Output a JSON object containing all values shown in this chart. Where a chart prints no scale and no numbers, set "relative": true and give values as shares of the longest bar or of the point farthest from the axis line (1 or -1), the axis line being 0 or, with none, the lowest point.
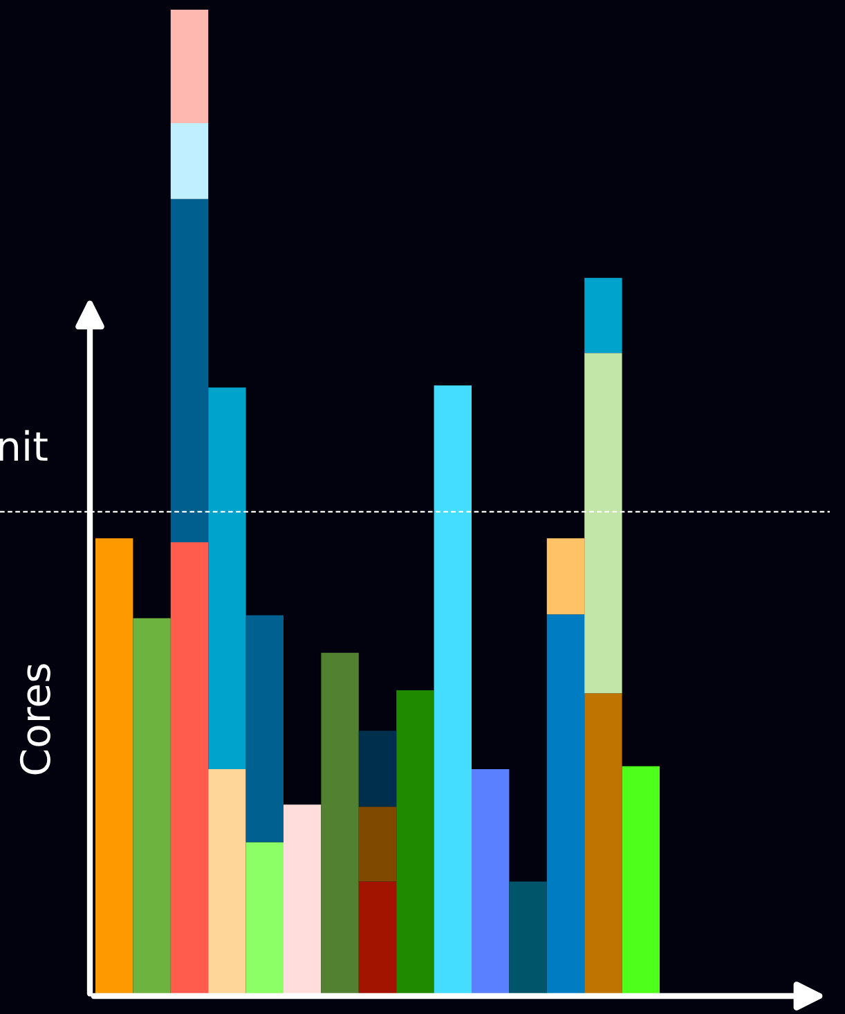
{
  "chart_data": {
    "type": "bar",
    "relative": true,
    "stacked": true,
    "ylabel": "Cores",
    "categories": [
      null,
      null,
      null,
      null,
      null,
      null,
      null,
      null,
      null,
      null,
      null,
      null,
      null,
      null,
      null
    ],
    "series": [
      {
        "colors": [
          "#ff9900",
          "#6db33f",
          "#ff5c4d",
          "#ffd699",
          "#8cff66",
          "#ffdddd",
          "#538132",
          "#a31400",
          "#1f8a00",
          "#44ddff",
          "#5a80ff",
          "#00556b",
          "#007dc2",
          "#bf7300",
          "#4dff1a"
        ],
        "values": [
          0.464,
          0.383,
          0.46,
          0.23,
          0.156,
          0.194,
          0.348,
          0.116,
          0.31,
          0.619,
          0.23,
          0.116,
          0.387,
          0.307,
          0.233
        ]
      },
      {
        "colors": [
          "#000000",
          "#000000",
          "#005f8f",
          "#00a3cc",
          "#00608f",
          "#000000",
          "#000000",
          "#7f4a00",
          "#000000",
          "#000000",
          "#000000",
          "#000000",
          "#ffc266",
          "#c2e6a8",
          "#000000"
        ],
        "values": [
          null,
          null,
          0.348,
          0.387,
          0.23,
          null,
          null,
          0.076,
          null,
          null,
          null,
          null,
          0.077,
          0.345,
          null
        ]
      },
      {
        "colors": [
          "#000000",
          "#000000",
          "#c0f0ff",
          "#000000",
          "#000000",
          "#000000",
          "#000000",
          "#002e4d",
          "#000000",
          "#000000",
          "#000000",
          "#000000",
          "#000000",
          "#00a3cc",
          "#000000"
        ],
        "values": [
          null,
          null,
          0.077,
          null,
          null,
          null,
          null,
          0.077,
          null,
          null,
          null,
          null,
          null,
          0.076,
          null
        ]
      },
      {
        "colors": [
          "#000000",
          "#000000",
          "#ffb8b0",
          "#000000",
          "#000000",
          "#000000",
          "#000000",
          "#000000",
          "#000000",
          "#000000",
          "#000000",
          "#000000",
          "#000000",
          "#000000",
          "#000000"
        ],
        "values": [
          null,
          null,
          0.115,
          null,
          null,
          null,
          null,
          null,
          null,
          null,
          null,
          null,
          null,
          null,
          null
        ]
      }
    ],
    "ref_lines": [
      {
        "axis": "y",
        "value": 0.491,
        "label": "nit",
        "color": "#ffffff",
        "line_style": "dashed"
      }
    ],
    "legend": false,
    "grid": false
  }
}
